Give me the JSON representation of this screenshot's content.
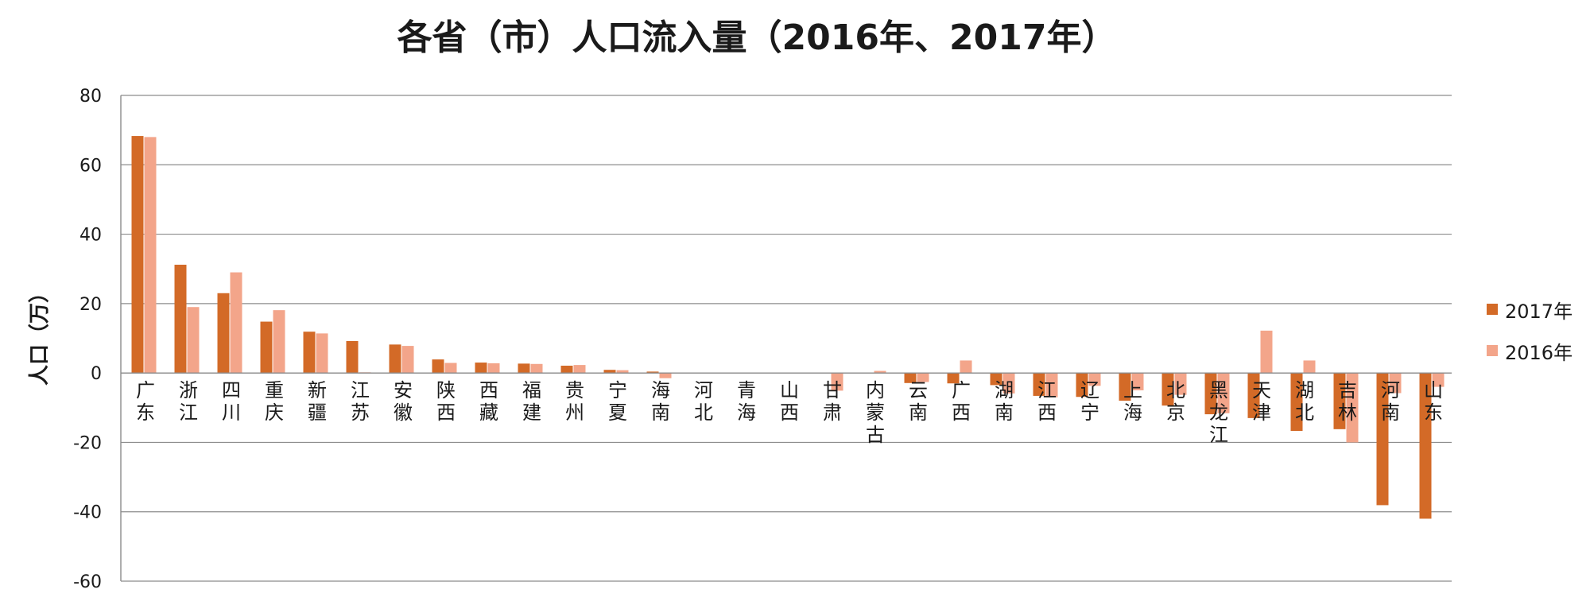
{
  "chart_data": {
    "type": "bar",
    "title": "各省（市）人口流入量（2016年、2017年）",
    "ylabel": "人口（万）",
    "xlabel": "",
    "ylim": [
      -60,
      80
    ],
    "yticks": [
      80,
      60,
      40,
      20,
      0,
      -20,
      -40,
      -60
    ],
    "grid": true,
    "legend_position": "right",
    "categories": [
      "广东",
      "浙江",
      "四川",
      "重庆",
      "新疆",
      "江苏",
      "安徽",
      "陕西",
      "西藏",
      "福建",
      "贵州",
      "宁夏",
      "海南",
      "河北",
      "青海",
      "山西",
      "甘肃",
      "内蒙古",
      "云南",
      "广西",
      "湖南",
      "江西",
      "辽宁",
      "上海",
      "北京",
      "黑龙江",
      "天津",
      "湖北",
      "吉林",
      "河南",
      "山东"
    ],
    "series": [
      {
        "name": "2017年",
        "color": "#d36a27",
        "values": [
          68.3,
          31.2,
          23.0,
          14.8,
          11.9,
          9.2,
          8.2,
          3.9,
          3.0,
          2.7,
          2.1,
          0.9,
          0.4,
          0,
          0,
          0,
          0,
          0,
          -2.9,
          -3.0,
          -3.5,
          -6.6,
          -6.9,
          -8.0,
          -9.4,
          -11.9,
          -13.0,
          -16.7,
          -16.2,
          -38.1,
          -42.0
        ]
      },
      {
        "name": "2016年",
        "color": "#f3a58a",
        "values": [
          68.0,
          19.0,
          29.0,
          18.1,
          11.4,
          0.2,
          7.8,
          2.9,
          2.8,
          2.6,
          2.3,
          0.8,
          -1.5,
          0,
          0,
          0,
          -5.1,
          0.6,
          -2.6,
          3.6,
          -5.9,
          -7.0,
          -3.7,
          -5.0,
          -6.3,
          -11.6,
          12.2,
          3.6,
          -20.0,
          -5.8,
          -4.0
        ]
      }
    ]
  }
}
